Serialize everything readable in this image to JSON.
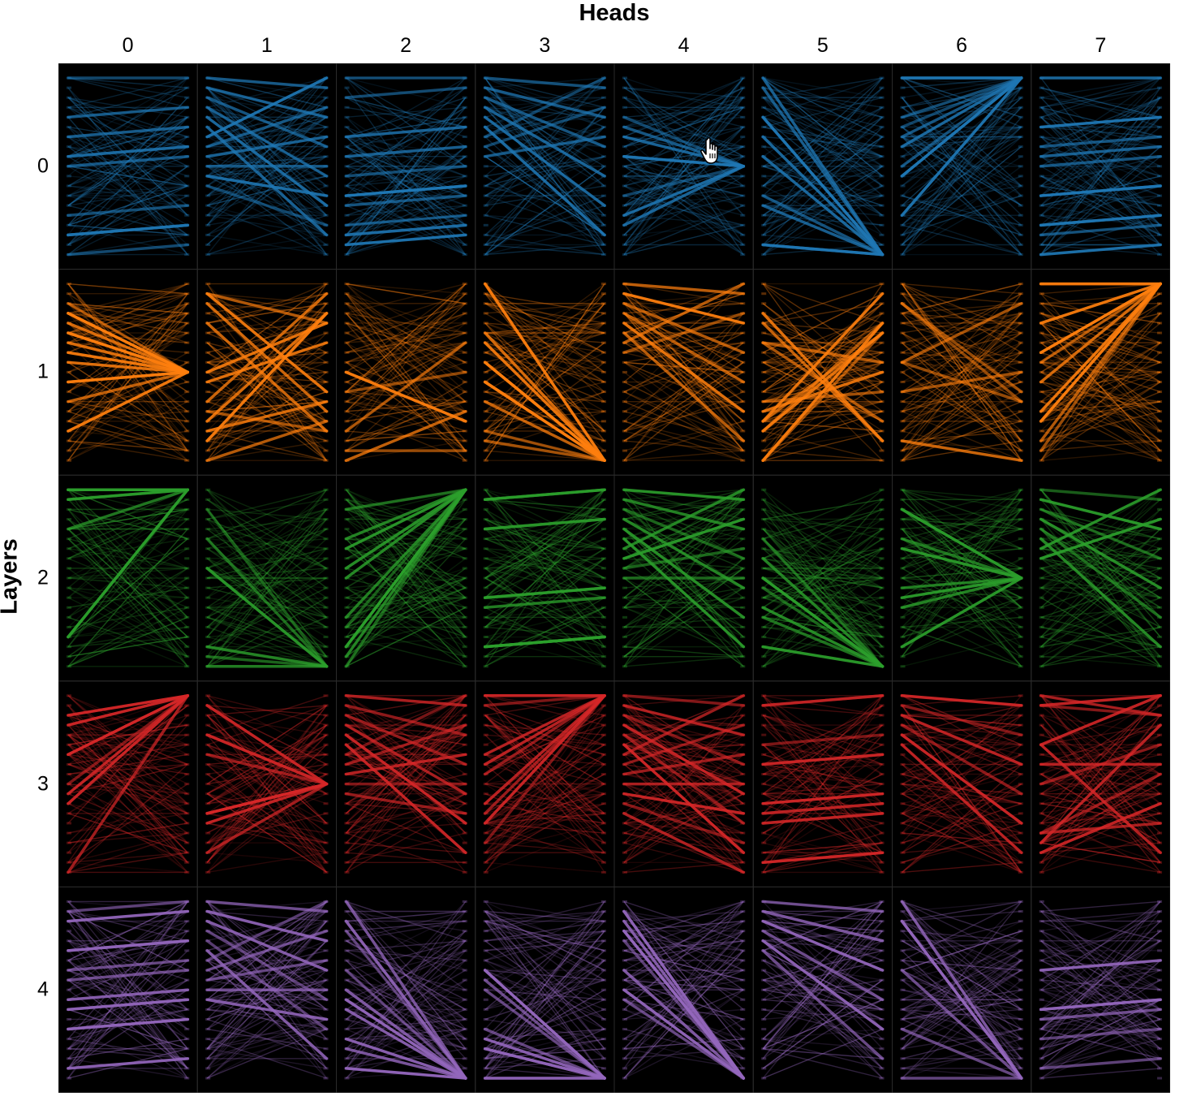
{
  "x_title": "Heads",
  "y_title": "Layers",
  "heads": [
    "0",
    "1",
    "2",
    "3",
    "4",
    "5",
    "6",
    "7"
  ],
  "layers": [
    "0",
    "1",
    "2",
    "3",
    "4"
  ],
  "colors": {
    "background": "#000000",
    "cell_border": "#2a2a2a",
    "layers": [
      "#1f77b4",
      "#ff7f0e",
      "#2ca02c",
      "#d62728",
      "#9467bd"
    ]
  },
  "tokens_per_cell": 19,
  "cursor_icon": "hand-pointer-icon"
}
